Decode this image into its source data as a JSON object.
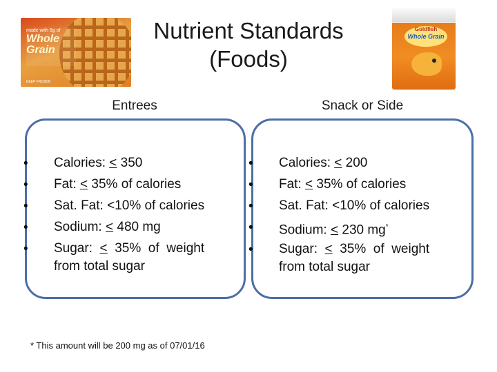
{
  "title": {
    "line1": "Nutrient Standards",
    "line2": "(Foods)"
  },
  "images": {
    "waffle": {
      "label_small": "made with 8g of",
      "label_big1": "Whole",
      "label_big2": "Grain",
      "footer": "KEEP FROZEN"
    },
    "snack_box": {
      "brand": "Goldfish",
      "variant": "Whole Grain"
    }
  },
  "entrees": {
    "heading": "Entrees",
    "items": [
      {
        "prefix": "Calories: ",
        "sym": "<",
        "suffix": " 350"
      },
      {
        "prefix": "Fat: ",
        "sym": "<",
        "suffix": " 35% of calories"
      },
      {
        "text": "Sat. Fat: <10% of calories"
      },
      {
        "prefix": "Sodium: ",
        "sym": "<",
        "suffix": " 480 mg"
      },
      {
        "prefix": "Sugar:  ",
        "sym": "<",
        "suffix": "  35%  of  weight",
        "line2": "from total sugar"
      }
    ]
  },
  "snack": {
    "heading": "Snack or Side",
    "items": [
      {
        "prefix": "Calories: ",
        "sym": "<",
        "suffix": " 200"
      },
      {
        "prefix": "Fat: ",
        "sym": "<",
        "suffix": " 35% of calories"
      },
      {
        "text": "Sat. Fat: <10% of calories"
      },
      {
        "prefix": "Sodium: ",
        "sym": "<",
        "suffix": " 230 mg",
        "sup": "*"
      },
      {
        "prefix": "Sugar:  ",
        "sym": "<",
        "suffix": "  35%  of  weight",
        "line2": "from total sugar"
      }
    ]
  },
  "footnote": "* This amount will be 200 mg as of 07/01/16",
  "colors": {
    "panel_border": "#4a6fa5",
    "text": "#111111"
  }
}
